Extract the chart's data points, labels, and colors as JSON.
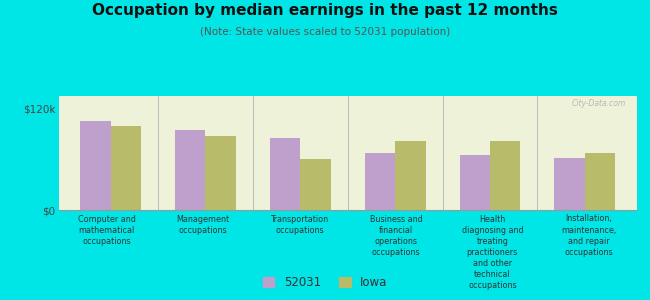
{
  "title": "Occupation by median earnings in the past 12 months",
  "subtitle": "(Note: State values scaled to 52031 population)",
  "background_color": "#00e5e5",
  "plot_bg_color": "#eef2d8",
  "categories": [
    "Computer and\nmathematical\noccupations",
    "Management\noccupations",
    "Transportation\noccupations",
    "Business and\nfinancial\noperations\noccupations",
    "Health\ndiagnosing and\ntreating\npractitioners\nand other\ntechnical\noccupations",
    "Installation,\nmaintenance,\nand repair\noccupations"
  ],
  "values_52031": [
    105000,
    95000,
    85000,
    68000,
    65000,
    62000
  ],
  "values_iowa": [
    100000,
    88000,
    60000,
    82000,
    82000,
    68000
  ],
  "color_52031": "#bf9fcc",
  "color_iowa": "#b8bc6a",
  "ylim": [
    0,
    135000
  ],
  "yticks": [
    0,
    120000
  ],
  "ytick_labels": [
    "$0",
    "$120k"
  ],
  "legend_labels": [
    "52031",
    "Iowa"
  ],
  "watermark": "City-Data.com"
}
